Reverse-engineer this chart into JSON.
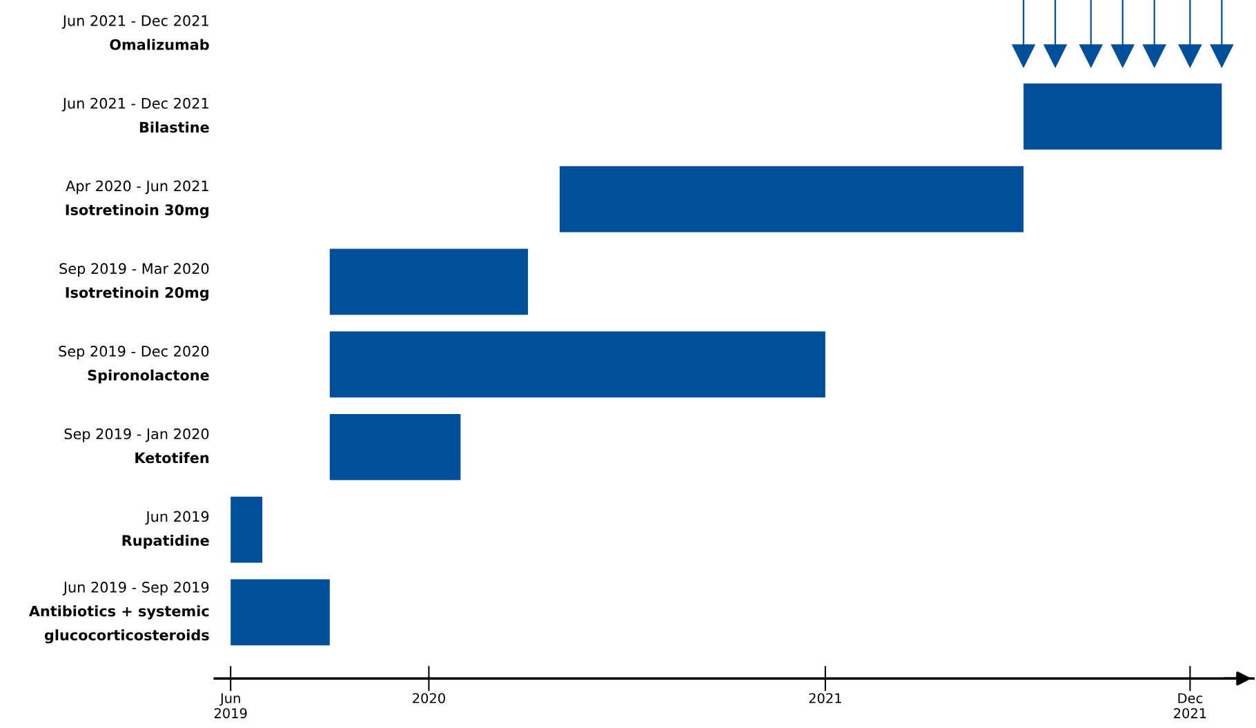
{
  "chart_data": {
    "type": "bar",
    "orientation": "horizontal",
    "categories": [
      "Jun 2021 - Dec 2021\nOmalizumab",
      "Jun 2021 - Dec 2021\nBilastine",
      "Apr 2020 - Jun 2021\nIsotretinoin 30mg",
      "Sep 2019 - Mar 2020\nIsotretinoin 20mg",
      "Sep 2019 - Dec 2020\nSpironolactone",
      "Sep 2019 - Jan 2020\nKetotifen",
      "Jun 2019\nRupatidine",
      "Jun 2019 - Sep 2019\nAntibiotics + systemic\nglucocorticosteroids"
    ],
    "series": [
      {
        "color": "#004f9b",
        "base": [
          null,
          2021.5,
          2020.33,
          2019.75,
          2019.75,
          2019.75,
          2019.5,
          2019.5
        ],
        "values": [
          null,
          0.5,
          1.17,
          0.5,
          1.25,
          0.33,
          0.08,
          0.25
        ]
      },
      {
        "type": "scatter",
        "marker": "triangle",
        "color": "#004f9b",
        "x": [
          "Jun 2021 - Dec 2021\nOmalizumab",
          "Jun 2021 - Dec 2021\nOmalizumab",
          "Jun 2021 - Dec 2021\nOmalizumab",
          "Jun 2021 - Dec 2021\nOmalizumab",
          "Jun 2021 - Dec 2021\nOmalizumab",
          "Jun 2021 - Dec 2021\nOmalizumab",
          "Jun 2021 - Dec 2021\nOmalizumab"
        ],
        "values": [
          2021.5,
          2021.58,
          2021.67,
          2021.75,
          2021.83,
          2021.92,
          2022.0
        ]
      }
    ],
    "xlim": [
      2019.46,
      2022.08
    ],
    "xticks": [
      {
        "value": 2019.5,
        "label": "Jun\n2019"
      },
      2020,
      2021,
      {
        "value": 2021.92,
        "label": "Dec\n2021"
      }
    ],
    "grid": false
  }
}
